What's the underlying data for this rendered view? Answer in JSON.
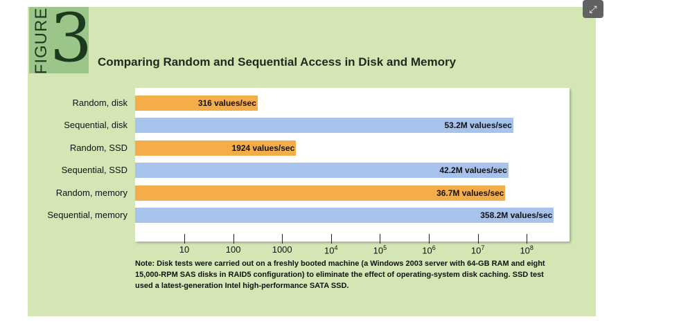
{
  "figure": {
    "word": "FIGURE",
    "number": "3"
  },
  "chart_data": {
    "type": "bar",
    "orientation": "horizontal",
    "title": "Comparing Random and Sequential Access in Disk and Memory",
    "x_scale": "log",
    "xlim": [
      1,
      10000000000
    ],
    "categories": [
      "Random, disk",
      "Sequential, disk",
      "Random, SSD",
      "Sequential, SSD",
      "Random, memory",
      "Sequential, memory"
    ],
    "values": [
      316,
      53200000,
      1924,
      42200000,
      36700000,
      358200000
    ],
    "value_labels": [
      "316 values/sec",
      "53.2M values/sec",
      "1924 values/sec",
      "42.2M values/sec",
      "36.7M values/sec",
      "358.2M values/sec"
    ],
    "bar_colors": [
      "#f4ad48",
      "#a7c3ec",
      "#f4ad48",
      "#a7c3ec",
      "#f4ad48",
      "#a7c3ec"
    ],
    "ticks": [
      {
        "value": 10,
        "base": "10",
        "exp": ""
      },
      {
        "value": 100,
        "base": "100",
        "exp": ""
      },
      {
        "value": 1000,
        "base": "1000",
        "exp": ""
      },
      {
        "value": 10000,
        "base": "10",
        "exp": "4"
      },
      {
        "value": 100000,
        "base": "10",
        "exp": "5"
      },
      {
        "value": 1000000,
        "base": "10",
        "exp": "6"
      },
      {
        "value": 10000000,
        "base": "10",
        "exp": "7"
      },
      {
        "value": 100000000,
        "base": "10",
        "exp": "8"
      }
    ],
    "note": "Note: Disk tests were carried out on a freshly booted machine (a Windows 2003 server with 64-GB RAM and eight 15,000-RPM SAS disks in RAID5 configuration) to eliminate the effect of operating-system disk caching. SSD test used a latest-generation Intel high-performance SATA SSD."
  },
  "ui": {
    "expand_icon": "expand-icon"
  }
}
